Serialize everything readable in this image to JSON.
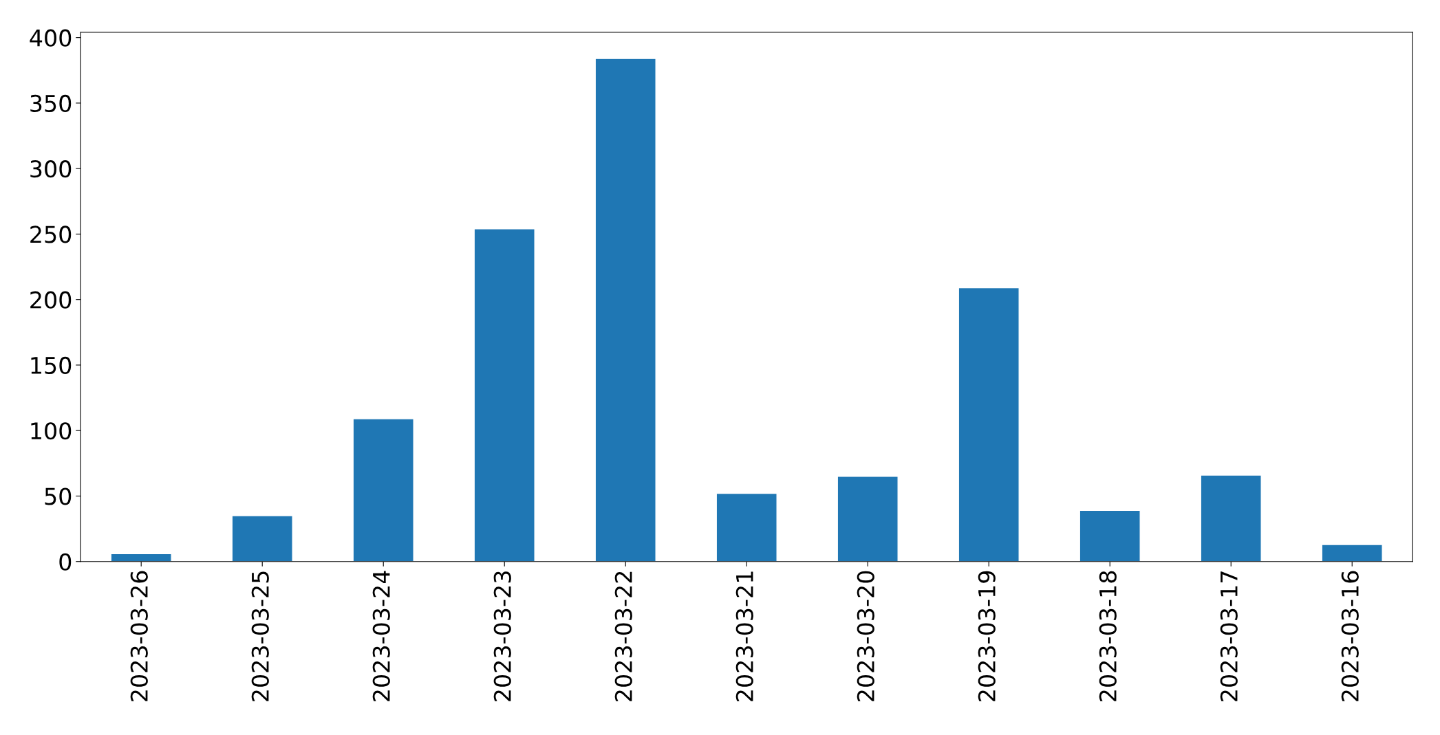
{
  "chart_data": {
    "type": "bar",
    "categories": [
      "2023-03-26",
      "2023-03-25",
      "2023-03-24",
      "2023-03-23",
      "2023-03-22",
      "2023-03-21",
      "2023-03-20",
      "2023-03-19",
      "2023-03-18",
      "2023-03-17",
      "2023-03-16"
    ],
    "values": [
      6,
      35,
      109,
      254,
      384,
      52,
      65,
      209,
      39,
      66,
      13
    ],
    "color": "#1f77b4",
    "ylim": [
      0,
      404
    ],
    "yticks": [
      0,
      50,
      100,
      150,
      200,
      250,
      300,
      350,
      400
    ],
    "grid": false,
    "legend": false
  }
}
